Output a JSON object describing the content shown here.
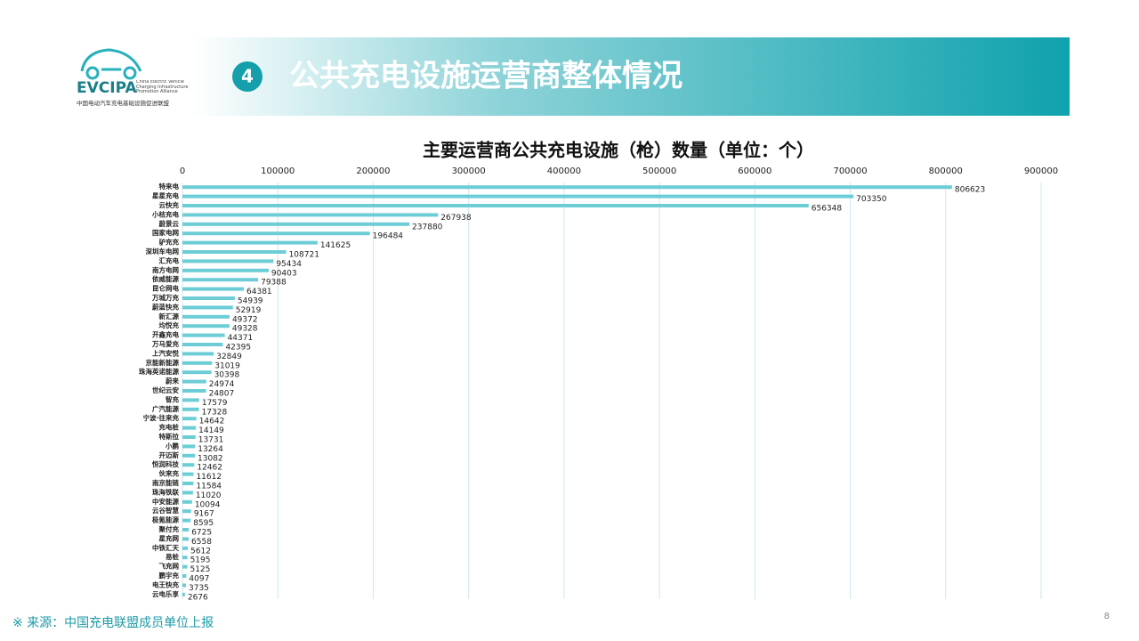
{
  "header": {
    "logo_name": "EVCIPA",
    "logo_en": "China Electric Vehicle Charging Infrastructure Promotion Alliance",
    "logo_cn": "中国电动汽车充电基础设施促进联盟",
    "section_number": "4",
    "title": "公共充电设施运营商整体情况"
  },
  "chart_data": {
    "type": "bar",
    "orientation": "horizontal",
    "title": "主要运营商公共充电设施（枪）数量（单位：个）",
    "color": "#6ccdd6",
    "grid": true,
    "categories": [
      "特来电",
      "星星充电",
      "云快充",
      "小桔充电",
      "蔚景云",
      "国家电网",
      "驴充充",
      "深圳车电网",
      "汇充电",
      "南方电网",
      "依威能源",
      "昆仑网电",
      "万城万充",
      "蔚蓝快充",
      "新汇源",
      "均悦充",
      "开鑫充电",
      "万马爱充",
      "上汽安悦",
      "京能新能源",
      "珠海英诺能源",
      "蔚来",
      "世纪云安",
      "智充",
      "广汽能源",
      "宁波·往来充",
      "充电桩",
      "特斯拉",
      "小鹏",
      "开迈斯",
      "恒润科技",
      "伙来充",
      "南京能链",
      "珠海铁联",
      "中安能源",
      "云谷智慧",
      "极氪能源",
      "聚付充",
      "星充网",
      "中铁汇天",
      "易桩",
      "飞充网",
      "鹏宇充",
      "电王快充",
      "云电乐享"
    ],
    "values": [
      806623,
      703350,
      656348,
      267938,
      237880,
      196484,
      141625,
      108721,
      95434,
      90403,
      79388,
      64381,
      54939,
      52919,
      49372,
      49328,
      44371,
      42395,
      32849,
      31019,
      30398,
      24974,
      24807,
      17579,
      17328,
      14642,
      14149,
      13731,
      13264,
      13082,
      12462,
      11612,
      11584,
      11020,
      10094,
      9167,
      8595,
      6725,
      6558,
      5612,
      5195,
      5125,
      4097,
      3735,
      2676
    ],
    "xlim": [
      0,
      900000
    ],
    "xticks": [
      0,
      100000,
      200000,
      300000,
      400000,
      500000,
      600000,
      700000,
      800000,
      900000
    ]
  },
  "footer": {
    "source": "※  来源：中国充电联盟成员单位上报",
    "page_number": "8"
  }
}
